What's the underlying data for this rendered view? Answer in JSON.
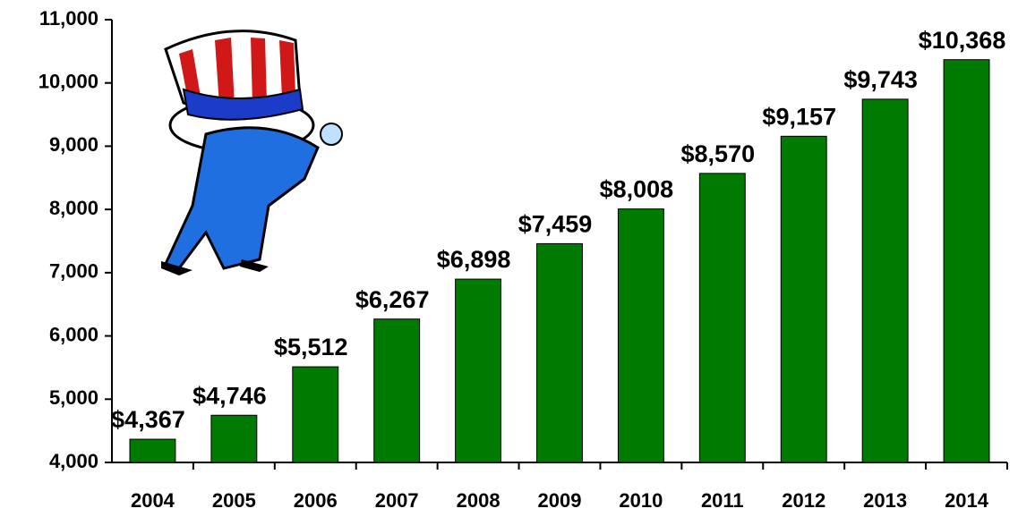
{
  "chart_data": {
    "type": "bar",
    "categories": [
      "2004",
      "2005",
      "2006",
      "2007",
      "2008",
      "2009",
      "2010",
      "2011",
      "2012",
      "2013",
      "2014"
    ],
    "values": [
      4367,
      4746,
      5512,
      6267,
      6898,
      7459,
      8008,
      8570,
      9157,
      9743,
      10368
    ],
    "value_labels": [
      "$4,367",
      "$4,746",
      "$5,512",
      "$6,267",
      "$6,898",
      "$7,459",
      "$8,008",
      "$8,570",
      "$9,157",
      "$9,743",
      "$10,368"
    ],
    "color": "#007a00",
    "ylim": [
      4000,
      11000
    ],
    "yticks": [
      {
        "value": 4000,
        "label": "4,000"
      },
      {
        "value": 5000,
        "label": "5,000"
      },
      {
        "value": 6000,
        "label": "6,000"
      },
      {
        "value": 7000,
        "label": "7,000"
      },
      {
        "value": 8000,
        "label": "8,000"
      },
      {
        "value": 9000,
        "label": "9,000"
      },
      {
        "value": 10000,
        "label": "10,000"
      },
      {
        "value": 11000,
        "label": "11,000"
      }
    ],
    "grid": false
  }
}
